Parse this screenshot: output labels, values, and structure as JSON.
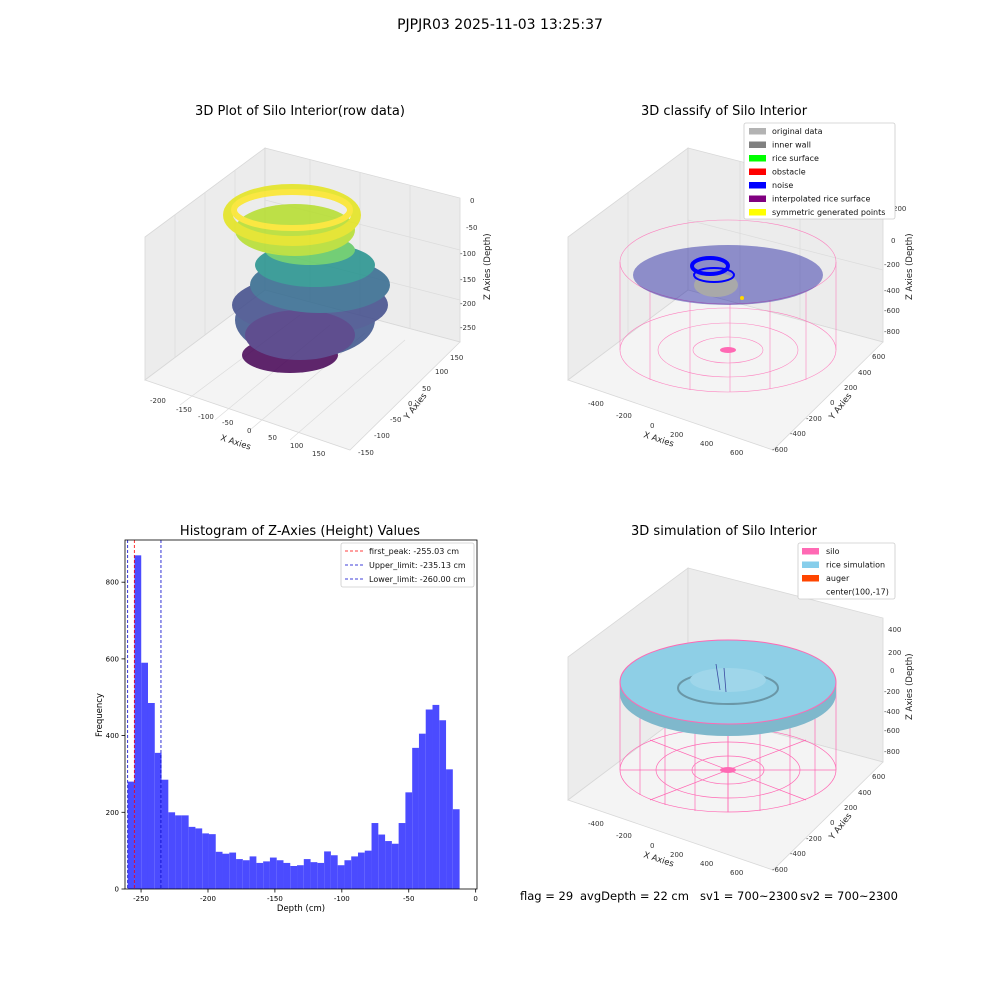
{
  "suptitle": "PJPJR03 2025-11-03 13:25:37",
  "colors": {
    "histogram_bar": "#4b4bff",
    "first_peak_line": "#ff0000",
    "limit_line": "#0000cc",
    "silo_pink": "#ff69b4",
    "rice_blue": "#8ecfe6",
    "noise_blue": "#0000ff",
    "gray": "#a9a9a9",
    "viridis": [
      "#440154",
      "#31688e",
      "#35b779",
      "#fde725"
    ]
  },
  "plot_raw": {
    "title": "3D Plot of Silo Interior(row data)",
    "xlabel": "X Axies",
    "ylabel": "Y Axies",
    "zlabel": "Z Axies (Depth)",
    "xticks": [
      "-200",
      "-150",
      "-100",
      "-50",
      "0",
      "50",
      "100",
      "150"
    ],
    "yticks": [
      "150",
      "100",
      "50",
      "0",
      "-50",
      "-100",
      "-150"
    ],
    "zticks": [
      "0",
      "-50",
      "-100",
      "-150",
      "-200",
      "-250"
    ]
  },
  "plot_classify": {
    "title": "3D classify of Silo Interior",
    "xlabel": "X Axies",
    "ylabel": "Y Axies",
    "zlabel": "Z Axies (Depth)",
    "xticks": [
      "-400",
      "-200",
      "0",
      "200",
      "400",
      "600"
    ],
    "yticks": [
      "600",
      "400",
      "200",
      "0",
      "-200",
      "-400",
      "-600"
    ],
    "zticks": [
      "200",
      "0",
      "-200",
      "-400",
      "-600",
      "-800"
    ],
    "legend": [
      {
        "label": "original data",
        "color": "#b3b3b3"
      },
      {
        "label": "inner wall",
        "color": "#808080"
      },
      {
        "label": "rice surface",
        "color": "#00ff00"
      },
      {
        "label": "obstacle",
        "color": "#ff0000"
      },
      {
        "label": "noise",
        "color": "#0000ff"
      },
      {
        "label": "interpolated rice surface",
        "color": "#800080"
      },
      {
        "label": "symmetric generated points",
        "color": "#ffff00"
      }
    ]
  },
  "plot_simulation": {
    "title": "3D simulation of Silo Interior",
    "xlabel": "X Axies",
    "ylabel": "Y Axies",
    "zlabel": "Z Axies (Depth)",
    "xticks": [
      "-400",
      "-200",
      "0",
      "200",
      "400",
      "600"
    ],
    "yticks": [
      "600",
      "400",
      "200",
      "0",
      "-200",
      "-400",
      "-600"
    ],
    "zticks": [
      "400",
      "200",
      "0",
      "-200",
      "-400",
      "-600",
      "-800"
    ],
    "legend": [
      {
        "label": "silo",
        "color": "#ff69b4"
      },
      {
        "label": "rice simulation",
        "color": "#87ceeb"
      },
      {
        "label": "auger",
        "color": "#ff4500"
      },
      {
        "label": "center(100,-17)",
        "color": ""
      }
    ]
  },
  "footer": {
    "flag": "flag = 29",
    "avg_depth": "avgDepth = 22 cm",
    "sv1": "sv1 = 700~2300",
    "sv2": "sv2 = 700~2300"
  },
  "chart_data": {
    "type": "bar",
    "title": "Histogram of Z-Axies (Height) Values",
    "xlabel": "Depth (cm)",
    "ylabel": "Frequency",
    "xlim": [
      -262,
      1
    ],
    "ylim": [
      0,
      910
    ],
    "xticks": [
      -250,
      -200,
      -150,
      -100,
      -50,
      0
    ],
    "yticks": [
      0,
      200,
      400,
      600,
      800
    ],
    "bin_range": [
      -260,
      -12
    ],
    "values": [
      280,
      870,
      590,
      485,
      355,
      285,
      200,
      192,
      192,
      162,
      158,
      145,
      143,
      97,
      92,
      95,
      78,
      75,
      85,
      68,
      72,
      82,
      75,
      68,
      60,
      62,
      78,
      70,
      68,
      98,
      88,
      62,
      75,
      85,
      95,
      100,
      172,
      142,
      125,
      118,
      172,
      252,
      368,
      405,
      468,
      480,
      440,
      312,
      208
    ],
    "vlines": [
      {
        "label": "first_peak: -255.03 cm",
        "x": -255.03,
        "color": "#ff0000"
      },
      {
        "label": "Upper_limit: -235.13 cm",
        "x": -235.13,
        "color": "#0000cc"
      },
      {
        "label": "Lower_limit: -260.00 cm",
        "x": -260.0,
        "color": "#0000cc"
      }
    ]
  }
}
